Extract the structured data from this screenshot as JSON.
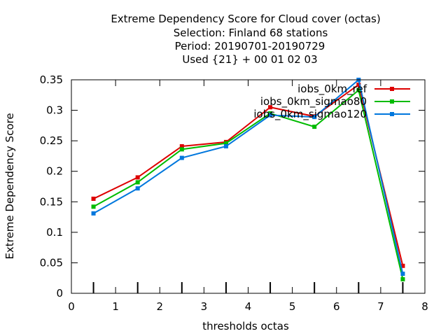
{
  "chart_data": {
    "type": "line",
    "title_lines": [
      "Extreme Dependency Score  for Cloud cover (octas)",
      "Selection: Finland     68 stations",
      "Period: 20190701-20190729",
      "Used {21} + 00 01 02 03"
    ],
    "xlabel": "thresholds octas",
    "ylabel": "Extreme Dependency Score",
    "xlim": [
      0,
      8
    ],
    "ylim": [
      0,
      0.35
    ],
    "x_ticks": [
      0,
      1,
      2,
      3,
      4,
      5,
      6,
      7,
      8
    ],
    "x_tick_labels": [
      "0",
      "1",
      "2",
      "3",
      "4",
      "5",
      "6",
      "7",
      "8"
    ],
    "y_ticks": [
      0,
      0.05,
      0.1,
      0.15,
      0.2,
      0.25,
      0.3,
      0.35
    ],
    "y_tick_labels": [
      "0",
      "0.05",
      "0.1",
      "0.15",
      "0.2",
      "0.25",
      "0.3",
      "0.35"
    ],
    "threshold_markers": [
      0.5,
      1.5,
      2.5,
      3.5,
      4.5,
      5.5,
      6.5,
      7.5
    ],
    "legend_position": "top-right",
    "grid": false,
    "x": [
      0.5,
      1.5,
      2.5,
      3.5,
      4.5,
      5.5,
      6.5,
      7.5
    ],
    "series": [
      {
        "name": "iobs_0km_ref",
        "color": "#dd0000",
        "values": [
          0.155,
          0.19,
          0.241,
          0.248,
          0.305,
          0.29,
          0.342,
          0.045
        ]
      },
      {
        "name": "iobs_0km_sigmao80",
        "color": "#00bb00",
        "values": [
          0.142,
          0.182,
          0.236,
          0.246,
          0.295,
          0.273,
          0.333,
          0.023
        ]
      },
      {
        "name": "iobs_0km_sigmao120",
        "color": "#0077dd",
        "values": [
          0.131,
          0.172,
          0.222,
          0.241,
          0.292,
          0.289,
          0.35,
          0.032
        ]
      }
    ]
  }
}
